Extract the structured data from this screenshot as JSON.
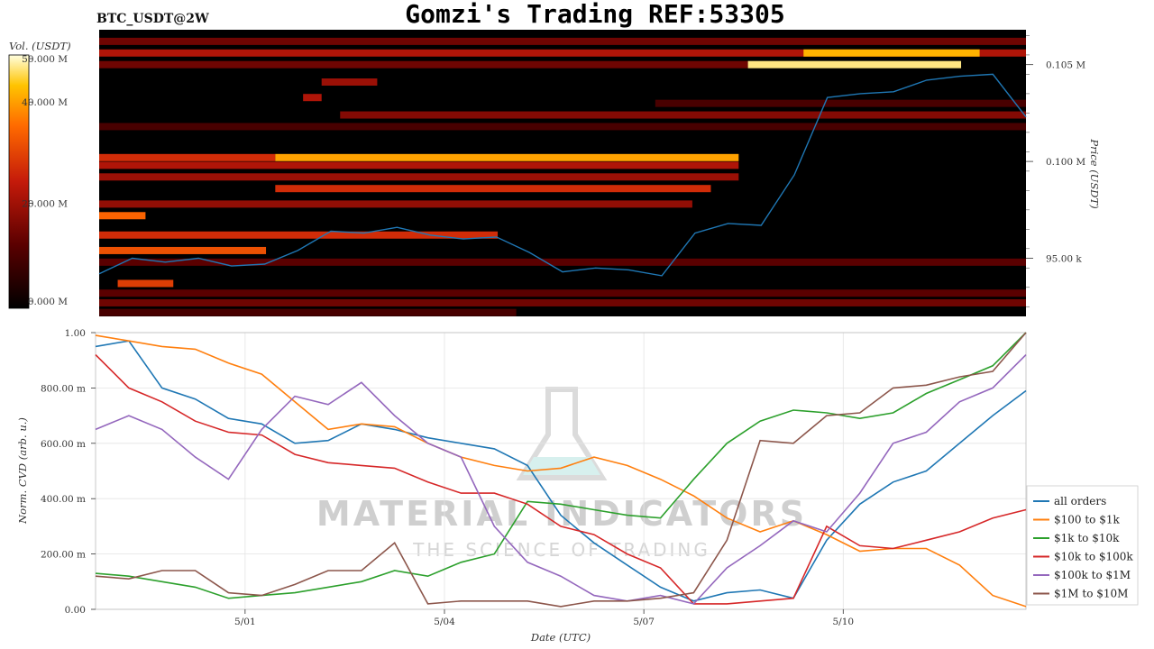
{
  "header": {
    "symbol": "BTC_USDT@2W",
    "title": "Gomzi's Trading REF:53305"
  },
  "watermark": {
    "main": "MATERIAL INDICATORS",
    "sub": "THE SCIENCE OF TRADING"
  },
  "colors": {
    "price_line": "#1f77b4",
    "heatmap_bg": "#000000",
    "all_orders": "#1f77b4",
    "usd100_1k": "#ff7f0e",
    "usd1k_10k": "#2ca02c",
    "usd10k_100k": "#d62728",
    "usd100k_1m": "#9467bd",
    "usd1m_10m": "#8c564b"
  },
  "chart_data": [
    {
      "type": "heatmap",
      "colorbar": {
        "label": "Vol. (USDT)",
        "ticks": [
          "0.000 M",
          "20.000 M",
          "40.000 M",
          "50.000 M"
        ],
        "range": [
          0,
          50
        ]
      },
      "y_axis": {
        "label": "Price (USDT)",
        "ticks": [
          "95.00 k",
          "0.100 M",
          "0.105 M"
        ],
        "range": [
          92000,
          106800
        ]
      },
      "price_series": {
        "name": "BTC_USDT price",
        "x_days": [
          0,
          0.5,
          1,
          1.5,
          2,
          2.5,
          3,
          3.5,
          4,
          4.5,
          5,
          5.5,
          6,
          6.5,
          7,
          7.5,
          8,
          8.5,
          9,
          9.5,
          10,
          10.5,
          11,
          11.5,
          12,
          12.5,
          13,
          13.5,
          14
        ],
        "y": [
          94200,
          95000,
          94800,
          95000,
          94600,
          94700,
          95400,
          96400,
          96300,
          96600,
          96200,
          96000,
          96100,
          95300,
          94300,
          94500,
          94400,
          94100,
          96300,
          96800,
          96700,
          99300,
          103300,
          103500,
          103600,
          104200,
          104400,
          104500,
          102300
        ]
      },
      "liquidity_bands": [
        {
          "price": 106200,
          "start": 0.0,
          "end": 1.0,
          "intensity": 0.3
        },
        {
          "price": 105600,
          "start": 0.0,
          "end": 1.0,
          "intensity": 0.45
        },
        {
          "price": 105600,
          "start": 0.76,
          "end": 0.95,
          "intensity": 0.85
        },
        {
          "price": 105000,
          "start": 0.0,
          "end": 0.7,
          "intensity": 0.3
        },
        {
          "price": 105000,
          "start": 0.7,
          "end": 0.93,
          "intensity": 0.95
        },
        {
          "price": 104100,
          "start": 0.24,
          "end": 0.3,
          "intensity": 0.4
        },
        {
          "price": 103300,
          "start": 0.22,
          "end": 0.24,
          "intensity": 0.45
        },
        {
          "price": 103000,
          "start": 0.6,
          "end": 1.0,
          "intensity": 0.2
        },
        {
          "price": 102400,
          "start": 0.26,
          "end": 1.0,
          "intensity": 0.35
        },
        {
          "price": 101800,
          "start": 0.0,
          "end": 1.0,
          "intensity": 0.2
        },
        {
          "price": 100200,
          "start": 0.0,
          "end": 0.19,
          "intensity": 0.55
        },
        {
          "price": 100200,
          "start": 0.19,
          "end": 0.69,
          "intensity": 0.82
        },
        {
          "price": 99800,
          "start": 0.0,
          "end": 0.69,
          "intensity": 0.45
        },
        {
          "price": 99200,
          "start": 0.0,
          "end": 0.69,
          "intensity": 0.4
        },
        {
          "price": 98600,
          "start": 0.19,
          "end": 0.66,
          "intensity": 0.55
        },
        {
          "price": 97800,
          "start": 0.0,
          "end": 0.64,
          "intensity": 0.38
        },
        {
          "price": 97200,
          "start": 0.0,
          "end": 0.05,
          "intensity": 0.7
        },
        {
          "price": 96200,
          "start": 0.0,
          "end": 0.43,
          "intensity": 0.55
        },
        {
          "price": 95400,
          "start": 0.0,
          "end": 0.18,
          "intensity": 0.65
        },
        {
          "price": 94800,
          "start": 0.0,
          "end": 1.0,
          "intensity": 0.25
        },
        {
          "price": 93700,
          "start": 0.02,
          "end": 0.08,
          "intensity": 0.6
        },
        {
          "price": 93200,
          "start": 0.0,
          "end": 1.0,
          "intensity": 0.25
        },
        {
          "price": 92700,
          "start": 0.0,
          "end": 1.0,
          "intensity": 0.3
        },
        {
          "price": 92200,
          "start": 0.0,
          "end": 0.45,
          "intensity": 0.2
        }
      ]
    },
    {
      "type": "line",
      "xlabel": "Date (UTC)",
      "ylabel": "Norm. CVD (arb. u.)",
      "x_ticks": [
        "5/01",
        "5/04",
        "5/07",
        "5/10"
      ],
      "x_tick_days": [
        2.25,
        5.25,
        8.25,
        11.25
      ],
      "x_range": [
        0,
        14
      ],
      "y_ticks": [
        "0.00",
        "200.00 m",
        "400.00 m",
        "600.00 m",
        "800.00 m",
        "1.00"
      ],
      "ylim": [
        0,
        1
      ],
      "grid": true,
      "legend_position": "bottom-right",
      "x_days": [
        0,
        0.5,
        1,
        1.5,
        2,
        2.5,
        3,
        3.5,
        4,
        4.5,
        5,
        5.5,
        6,
        6.5,
        7,
        7.5,
        8,
        8.5,
        9,
        9.5,
        10,
        10.5,
        11,
        11.5,
        12,
        12.5,
        13,
        13.5,
        14
      ],
      "series": [
        {
          "name": "all orders",
          "color_key": "all_orders",
          "values": [
            0.95,
            0.97,
            0.8,
            0.76,
            0.69,
            0.67,
            0.6,
            0.61,
            0.67,
            0.65,
            0.62,
            0.6,
            0.58,
            0.52,
            0.34,
            0.24,
            0.16,
            0.08,
            0.03,
            0.06,
            0.07,
            0.04,
            0.25,
            0.38,
            0.46,
            0.5,
            0.6,
            0.7,
            0.79
          ]
        },
        {
          "name": "$100 to $1k",
          "color_key": "usd100_1k",
          "values": [
            0.99,
            0.97,
            0.95,
            0.94,
            0.89,
            0.85,
            0.75,
            0.65,
            0.67,
            0.66,
            0.6,
            0.55,
            0.52,
            0.5,
            0.51,
            0.55,
            0.52,
            0.47,
            0.41,
            0.33,
            0.28,
            0.32,
            0.27,
            0.21,
            0.22,
            0.22,
            0.16,
            0.05,
            0.01
          ]
        },
        {
          "name": "$1k to $10k",
          "color_key": "usd1k_10k",
          "values": [
            0.13,
            0.12,
            0.1,
            0.08,
            0.04,
            0.05,
            0.06,
            0.08,
            0.1,
            0.14,
            0.12,
            0.17,
            0.2,
            0.39,
            0.38,
            0.36,
            0.34,
            0.33,
            0.47,
            0.6,
            0.68,
            0.72,
            0.71,
            0.69,
            0.71,
            0.78,
            0.83,
            0.88,
            1.0
          ]
        },
        {
          "name": "$10k to $100k",
          "color_key": "usd10k_100k",
          "values": [
            0.92,
            0.8,
            0.75,
            0.68,
            0.64,
            0.63,
            0.56,
            0.53,
            0.52,
            0.51,
            0.46,
            0.42,
            0.42,
            0.38,
            0.3,
            0.27,
            0.2,
            0.15,
            0.02,
            0.02,
            0.03,
            0.04,
            0.3,
            0.23,
            0.22,
            0.25,
            0.28,
            0.33,
            0.36
          ]
        },
        {
          "name": "$100k to $1M",
          "color_key": "usd100k_1m",
          "values": [
            0.65,
            0.7,
            0.65,
            0.55,
            0.47,
            0.65,
            0.77,
            0.74,
            0.82,
            0.7,
            0.6,
            0.55,
            0.3,
            0.17,
            0.12,
            0.05,
            0.03,
            0.05,
            0.02,
            0.15,
            0.23,
            0.32,
            0.28,
            0.42,
            0.6,
            0.64,
            0.75,
            0.8,
            0.92
          ]
        },
        {
          "name": "$1M to $10M",
          "color_key": "usd1m_10m",
          "values": [
            0.12,
            0.11,
            0.14,
            0.14,
            0.06,
            0.05,
            0.09,
            0.14,
            0.14,
            0.24,
            0.02,
            0.03,
            0.03,
            0.03,
            0.01,
            0.03,
            0.03,
            0.04,
            0.06,
            0.25,
            0.61,
            0.6,
            0.7,
            0.71,
            0.8,
            0.81,
            0.84,
            0.86,
            1.0
          ]
        }
      ]
    }
  ]
}
